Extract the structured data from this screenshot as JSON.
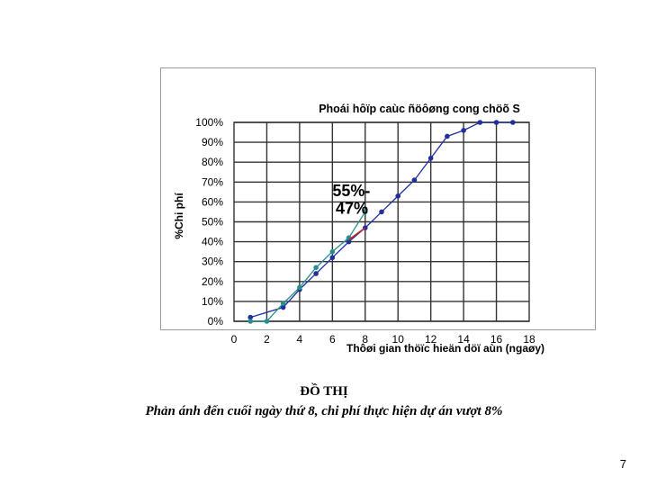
{
  "chart_data": {
    "type": "line",
    "title": "Phoái hôïp caùc ñöôøng cong chöõ S",
    "xlabel": "Thôøi gian thöïc hieän döï aùn (ngaøy)",
    "ylabel": "%Chi phí",
    "xlim": [
      0,
      18
    ],
    "ylim": [
      0,
      100
    ],
    "x_ticks": [
      "0",
      "2",
      "4",
      "6",
      "8",
      "10",
      "12",
      "14",
      "16",
      "18"
    ],
    "y_ticks": [
      "0%",
      "10%",
      "20%",
      "30%",
      "40%",
      "50%",
      "60%",
      "70%",
      "80%",
      "90%",
      "100%"
    ],
    "grid": true,
    "series": [
      {
        "x": [
          1,
          3,
          4,
          5,
          6,
          7,
          8,
          9,
          10,
          11,
          12,
          13,
          14,
          15,
          16,
          17
        ],
        "values": [
          2,
          7,
          16,
          24,
          32,
          40,
          47,
          55,
          63,
          71,
          82,
          93,
          96,
          100,
          100,
          100
        ],
        "color": "#1f2f9f"
      },
      {
        "x": [
          1,
          2,
          3,
          4,
          5,
          6,
          7,
          8
        ],
        "values": [
          0,
          0,
          9,
          17,
          27,
          35,
          42,
          55
        ],
        "color": "#2a8f8a"
      }
    ],
    "annotations": [
      {
        "text": "55%-",
        "x": 6.0,
        "y": 63
      },
      {
        "text": "47%",
        "x": 6.2,
        "y": 54
      }
    ]
  },
  "caption": {
    "title": "ĐỒ THỊ",
    "subtitle": "Phản ánh đến cuối ngày thứ 8, chi phí thực hiện dự án vượt 8%"
  },
  "page_number": "7"
}
